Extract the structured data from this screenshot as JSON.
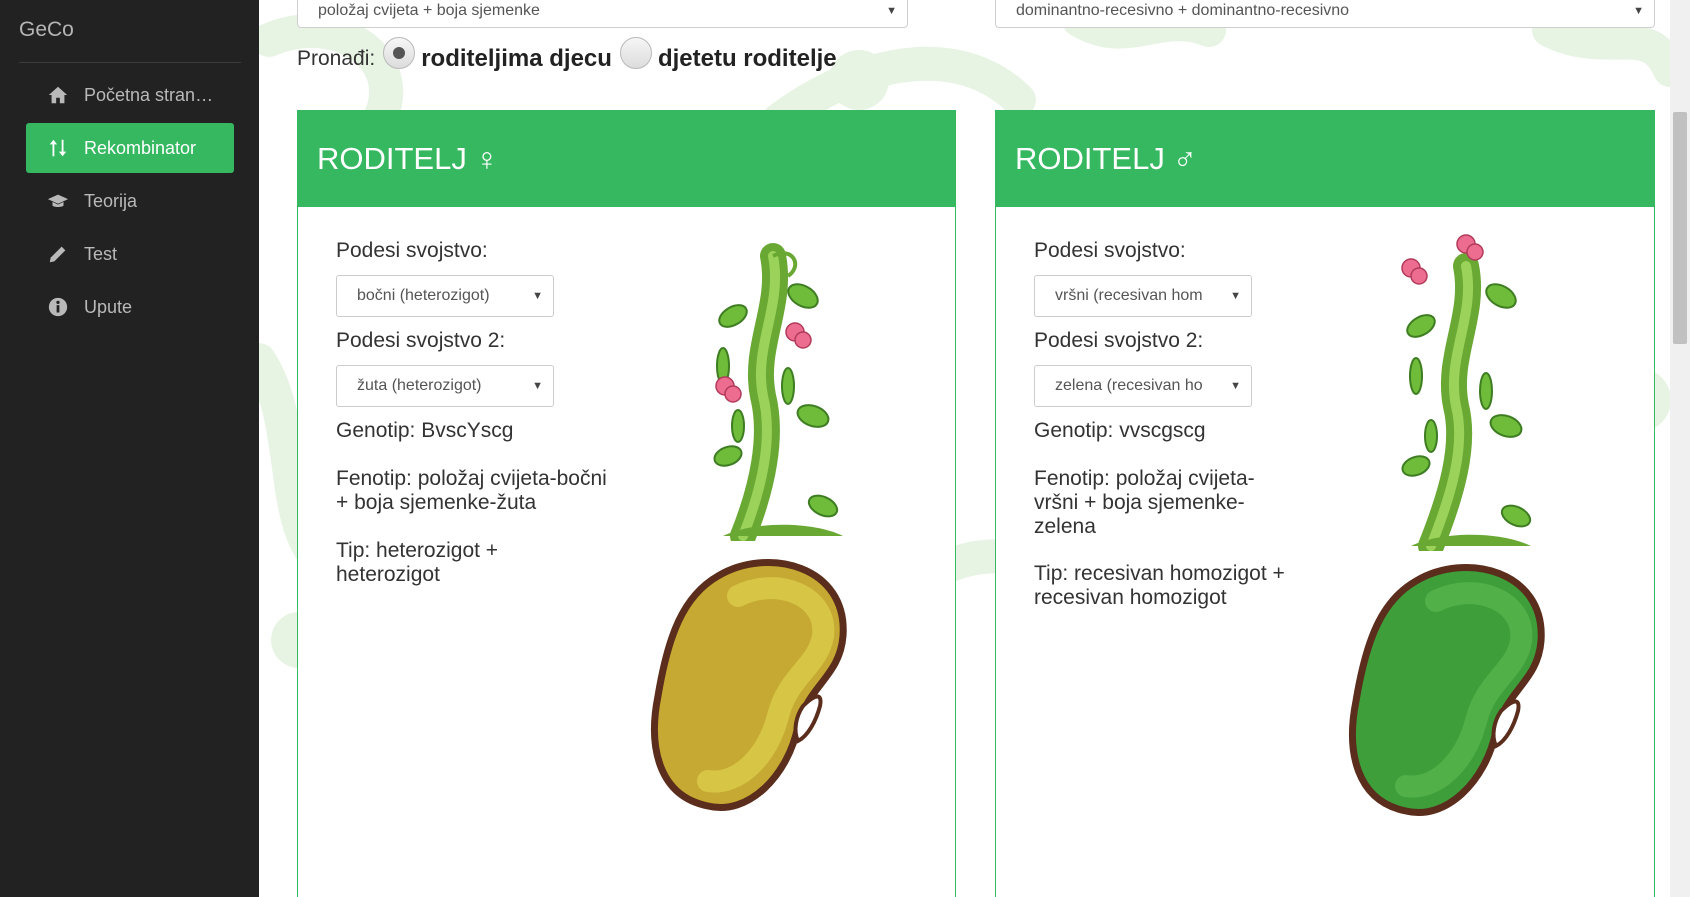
{
  "sidebar": {
    "brand": "GeCo",
    "items": [
      {
        "label": "Početna stran…",
        "icon": "home-icon",
        "active": false
      },
      {
        "label": "Rekombinator",
        "icon": "sort-arrows-icon",
        "active": true
      },
      {
        "label": "Teorija",
        "icon": "graduation-cap-icon",
        "active": false
      },
      {
        "label": "Test",
        "icon": "pencil-icon",
        "active": false
      },
      {
        "label": "Upute",
        "icon": "info-circle-icon",
        "active": false
      }
    ]
  },
  "top_selects": {
    "traits": "položaj cvijeta + boja sjemenke",
    "inheritance": "dominantno-recesivno + dominantno-recesivno"
  },
  "find": {
    "label": "Pronađi:",
    "option1": "roditeljima djecu",
    "option2": "djetetu roditelje",
    "selected": "roditeljima djecu"
  },
  "panels": [
    {
      "title": "RODITELJ",
      "symbol": "♀",
      "trait1_label": "Podesi svojstvo:",
      "trait1_value": "bočni (heterozigot)",
      "trait2_label": "Podesi svojstvo 2:",
      "trait2_value": "žuta (heterozigot)",
      "genotype": "Genotip: BvscYscg",
      "phenotype": "Fenotip: položaj cvijeta-bočni + boja sjemenke-žuta",
      "type": "Tip: heterozigot + heterozigot",
      "seed_color": "#c6a932",
      "seed_light": "#d7c545"
    },
    {
      "title": "RODITELJ",
      "symbol": "♂",
      "trait1_label": "Podesi svojstvo:",
      "trait1_value": "vršni (recesivan hom",
      "trait2_label": "Podesi svojstvo 2:",
      "trait2_value": "zelena (recesivan ho",
      "genotype": "Genotip: vvscgscg",
      "phenotype": "Fenotip: položaj cvijeta-vršni + boja sjemenke-zelena",
      "type": "Tip: recesivan homozigot + recesivan homozigot",
      "seed_color": "#3e9e3a",
      "seed_light": "#52b049"
    }
  ],
  "colors": {
    "accent": "#35b860",
    "sidebar_bg": "#222222"
  }
}
